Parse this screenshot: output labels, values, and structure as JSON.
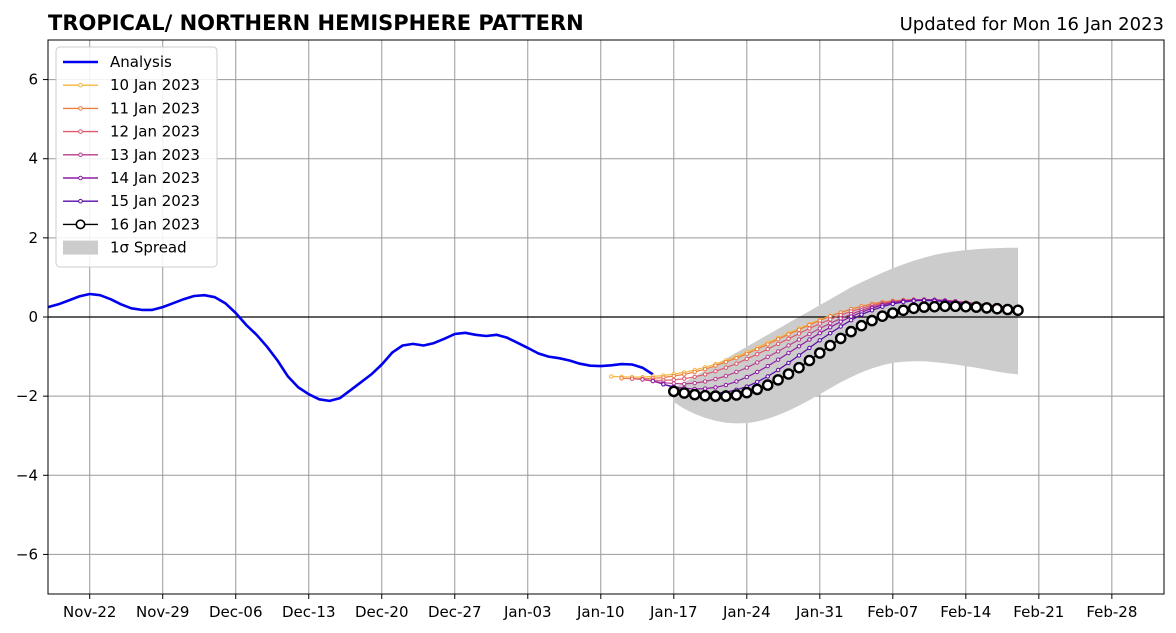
{
  "header": {
    "title": "TROPICAL/ NORTHERN HEMISPHERE PATTERN",
    "subtitle": "Updated for Mon 16 Jan 2023"
  },
  "chart_data": {
    "type": "line",
    "title": "TROPICAL/ NORTHERN HEMISPHERE PATTERN",
    "subtitle": "Updated for Mon 16 Jan 2023",
    "xlabel": "",
    "ylabel": "",
    "ylim": [
      -7,
      7
    ],
    "xlim": [
      "2022-11-18",
      "2023-03-05"
    ],
    "grid": true,
    "legend_position": "top-left",
    "x_ticks": [
      "Nov-22",
      "Nov-29",
      "Dec-06",
      "Dec-13",
      "Dec-20",
      "Dec-27",
      "Jan-03",
      "Jan-10",
      "Jan-17",
      "Jan-24",
      "Jan-31",
      "Feb-07",
      "Feb-14",
      "Feb-21",
      "Feb-28"
    ],
    "x_tick_dates": [
      "2022-11-22",
      "2022-11-29",
      "2022-12-06",
      "2022-12-13",
      "2022-12-20",
      "2022-12-27",
      "2023-01-03",
      "2023-01-10",
      "2023-01-17",
      "2023-01-24",
      "2023-01-31",
      "2023-02-07",
      "2023-02-14",
      "2023-02-21",
      "2023-02-28"
    ],
    "y_ticks": [
      6,
      4,
      2,
      0,
      -2,
      -4,
      -6
    ],
    "y_tick_labels": [
      "6",
      "4",
      "2",
      "0",
      "−2",
      "−4",
      "−6"
    ],
    "analysis": {
      "name": "Analysis",
      "color": "#0000ee",
      "points": [
        [
          "2022-11-18",
          0.25
        ],
        [
          "2022-11-19",
          0.32
        ],
        [
          "2022-11-20",
          0.42
        ],
        [
          "2022-11-21",
          0.52
        ],
        [
          "2022-11-22",
          0.58
        ],
        [
          "2022-11-23",
          0.55
        ],
        [
          "2022-11-24",
          0.45
        ],
        [
          "2022-11-25",
          0.32
        ],
        [
          "2022-11-26",
          0.22
        ],
        [
          "2022-11-27",
          0.18
        ],
        [
          "2022-11-28",
          0.18
        ],
        [
          "2022-11-29",
          0.25
        ],
        [
          "2022-11-30",
          0.35
        ],
        [
          "2022-12-01",
          0.45
        ],
        [
          "2022-12-02",
          0.53
        ],
        [
          "2022-12-03",
          0.55
        ],
        [
          "2022-12-04",
          0.5
        ],
        [
          "2022-12-05",
          0.35
        ],
        [
          "2022-12-06",
          0.1
        ],
        [
          "2022-12-07",
          -0.2
        ],
        [
          "2022-12-08",
          -0.45
        ],
        [
          "2022-12-09",
          -0.75
        ],
        [
          "2022-12-10",
          -1.1
        ],
        [
          "2022-12-11",
          -1.5
        ],
        [
          "2022-12-12",
          -1.78
        ],
        [
          "2022-12-13",
          -1.95
        ],
        [
          "2022-12-14",
          -2.08
        ],
        [
          "2022-12-15",
          -2.12
        ],
        [
          "2022-12-16",
          -2.05
        ],
        [
          "2022-12-17",
          -1.85
        ],
        [
          "2022-12-18",
          -1.65
        ],
        [
          "2022-12-19",
          -1.45
        ],
        [
          "2022-12-20",
          -1.2
        ],
        [
          "2022-12-21",
          -0.9
        ],
        [
          "2022-12-22",
          -0.72
        ],
        [
          "2022-12-23",
          -0.68
        ],
        [
          "2022-12-24",
          -0.72
        ],
        [
          "2022-12-25",
          -0.66
        ],
        [
          "2022-12-26",
          -0.55
        ],
        [
          "2022-12-27",
          -0.43
        ],
        [
          "2022-12-28",
          -0.4
        ],
        [
          "2022-12-29",
          -0.45
        ],
        [
          "2022-12-30",
          -0.48
        ],
        [
          "2022-12-31",
          -0.45
        ],
        [
          "2023-01-01",
          -0.52
        ],
        [
          "2023-01-02",
          -0.65
        ],
        [
          "2023-01-03",
          -0.78
        ],
        [
          "2023-01-04",
          -0.92
        ],
        [
          "2023-01-05",
          -1.0
        ],
        [
          "2023-01-06",
          -1.04
        ],
        [
          "2023-01-07",
          -1.1
        ],
        [
          "2023-01-08",
          -1.18
        ],
        [
          "2023-01-09",
          -1.23
        ],
        [
          "2023-01-10",
          -1.24
        ],
        [
          "2023-01-11",
          -1.22
        ],
        [
          "2023-01-12",
          -1.19
        ],
        [
          "2023-01-13",
          -1.2
        ],
        [
          "2023-01-14",
          -1.28
        ],
        [
          "2023-01-15",
          -1.45
        ]
      ]
    },
    "forecasts": [
      {
        "name": "10 Jan 2023",
        "color": "#f5b642",
        "start": "2023-01-11",
        "end": "2023-02-19",
        "values": [
          -1.5,
          -1.51,
          -1.52,
          -1.52,
          -1.5,
          -1.48,
          -1.44,
          -1.4,
          -1.34,
          -1.27,
          -1.19,
          -1.1,
          -1.0,
          -0.89,
          -0.77,
          -0.65,
          -0.53,
          -0.41,
          -0.29,
          -0.18,
          -0.07,
          0.03,
          0.12,
          0.2,
          0.27,
          0.33,
          0.37,
          0.4,
          0.42,
          0.43,
          0.43,
          0.42,
          0.4,
          0.38,
          0.36,
          0.33,
          0.3,
          0.27,
          0.24,
          0.21
        ]
      },
      {
        "name": "11 Jan 2023",
        "color": "#eb7f3f",
        "start": "2023-01-12",
        "end": "2023-02-19",
        "values": [
          -1.55,
          -1.56,
          -1.56,
          -1.55,
          -1.53,
          -1.49,
          -1.45,
          -1.39,
          -1.32,
          -1.23,
          -1.14,
          -1.04,
          -0.93,
          -0.81,
          -0.69,
          -0.56,
          -0.44,
          -0.32,
          -0.2,
          -0.09,
          0.02,
          0.11,
          0.2,
          0.27,
          0.33,
          0.38,
          0.41,
          0.43,
          0.44,
          0.44,
          0.43,
          0.41,
          0.39,
          0.36,
          0.33,
          0.3,
          0.27,
          0.24,
          0.21
        ]
      },
      {
        "name": "12 Jan 2023",
        "color": "#dd5a6e",
        "start": "2023-01-13",
        "end": "2023-02-19",
        "values": [
          -1.56,
          -1.58,
          -1.6,
          -1.6,
          -1.59,
          -1.56,
          -1.51,
          -1.45,
          -1.37,
          -1.28,
          -1.18,
          -1.06,
          -0.94,
          -0.81,
          -0.68,
          -0.55,
          -0.42,
          -0.29,
          -0.17,
          -0.06,
          0.05,
          0.14,
          0.22,
          0.29,
          0.35,
          0.39,
          0.42,
          0.44,
          0.44,
          0.43,
          0.42,
          0.4,
          0.37,
          0.34,
          0.31,
          0.28,
          0.24,
          0.21
        ]
      },
      {
        "name": "13 Jan 2023",
        "color": "#b83d8f",
        "start": "2023-01-14",
        "end": "2023-02-19",
        "values": [
          -1.58,
          -1.62,
          -1.66,
          -1.68,
          -1.69,
          -1.67,
          -1.63,
          -1.57,
          -1.49,
          -1.39,
          -1.28,
          -1.15,
          -1.01,
          -0.87,
          -0.72,
          -0.57,
          -0.43,
          -0.29,
          -0.16,
          -0.04,
          0.07,
          0.17,
          0.25,
          0.32,
          0.37,
          0.41,
          0.43,
          0.44,
          0.44,
          0.42,
          0.4,
          0.37,
          0.34,
          0.3,
          0.27,
          0.23,
          0.2
        ]
      },
      {
        "name": "14 Jan 2023",
        "color": "#8e1ba6",
        "start": "2023-01-15",
        "end": "2023-02-19",
        "values": [
          -1.62,
          -1.7,
          -1.76,
          -1.8,
          -1.82,
          -1.81,
          -1.78,
          -1.72,
          -1.63,
          -1.52,
          -1.39,
          -1.24,
          -1.08,
          -0.91,
          -0.74,
          -0.57,
          -0.41,
          -0.26,
          -0.12,
          0.01,
          0.12,
          0.22,
          0.3,
          0.36,
          0.4,
          0.42,
          0.43,
          0.43,
          0.41,
          0.38,
          0.35,
          0.31,
          0.27,
          0.23,
          0.19,
          0.16
        ]
      },
      {
        "name": "15 Jan 2023",
        "color": "#5a0aa8",
        "start": "2023-01-16",
        "end": "2023-02-19",
        "values": [
          -1.7,
          -1.78,
          -1.85,
          -1.9,
          -1.93,
          -1.93,
          -1.9,
          -1.84,
          -1.76,
          -1.64,
          -1.5,
          -1.34,
          -1.16,
          -0.97,
          -0.78,
          -0.59,
          -0.41,
          -0.24,
          -0.08,
          0.06,
          0.17,
          0.26,
          0.33,
          0.38,
          0.41,
          0.42,
          0.41,
          0.39,
          0.36,
          0.32,
          0.28,
          0.24,
          0.2,
          0.17,
          0.14
        ]
      },
      {
        "name": "16 Jan 2023",
        "color": "#000000",
        "start": "2023-01-17",
        "end": "2023-02-19",
        "values": [
          -1.88,
          -1.92,
          -1.96,
          -1.99,
          -2.0,
          -2.0,
          -1.97,
          -1.91,
          -1.83,
          -1.72,
          -1.59,
          -1.44,
          -1.28,
          -1.1,
          -0.91,
          -0.72,
          -0.54,
          -0.37,
          -0.22,
          -0.09,
          0.02,
          0.1,
          0.17,
          0.22,
          0.25,
          0.26,
          0.27,
          0.27,
          0.26,
          0.25,
          0.23,
          0.21,
          0.19,
          0.17
        ]
      }
    ],
    "spread": {
      "name": "1σ Spread",
      "color": "#cccccc",
      "start": "2023-01-17",
      "end": "2023-02-19",
      "upper": [
        -1.8,
        -1.65,
        -1.5,
        -1.35,
        -1.2,
        -1.05,
        -0.9,
        -0.75,
        -0.6,
        -0.45,
        -0.3,
        -0.15,
        0.0,
        0.15,
        0.3,
        0.45,
        0.6,
        0.75,
        0.88,
        1.0,
        1.12,
        1.23,
        1.33,
        1.42,
        1.5,
        1.57,
        1.62,
        1.66,
        1.69,
        1.71,
        1.73,
        1.74,
        1.75,
        1.75
      ],
      "lower": [
        -2.15,
        -2.32,
        -2.45,
        -2.55,
        -2.62,
        -2.67,
        -2.69,
        -2.68,
        -2.64,
        -2.57,
        -2.48,
        -2.37,
        -2.24,
        -2.1,
        -1.95,
        -1.8,
        -1.65,
        -1.52,
        -1.4,
        -1.3,
        -1.22,
        -1.16,
        -1.13,
        -1.12,
        -1.12,
        -1.14,
        -1.17,
        -1.2,
        -1.24,
        -1.28,
        -1.33,
        -1.38,
        -1.42,
        -1.45
      ]
    }
  }
}
